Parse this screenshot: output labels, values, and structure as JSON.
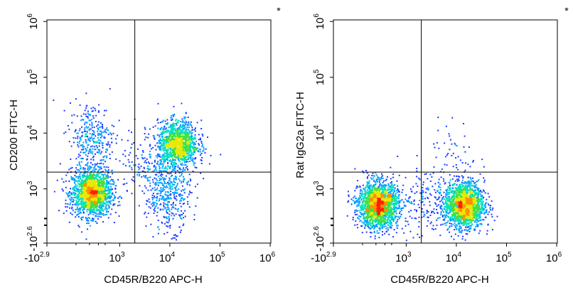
{
  "chart_data": [
    {
      "type": "scatter",
      "title": "",
      "corner_mark": "*",
      "xlabel": "CD45R/B220 APC-H",
      "ylabel": "CD200 FITC-H",
      "x_scale": "biexponential",
      "y_scale": "biexponential",
      "x_ticks": [
        {
          "base": "-10",
          "exp": "2.9"
        },
        {
          "base": "10",
          "exp": "3"
        },
        {
          "base": "10",
          "exp": "4"
        },
        {
          "base": "10",
          "exp": "5"
        },
        {
          "base": "10",
          "exp": "6"
        }
      ],
      "y_ticks": [
        {
          "base": "-10",
          "exp": "2.6"
        },
        {
          "base": "10",
          "exp": "3"
        },
        {
          "base": "10",
          "exp": "4"
        },
        {
          "base": "10",
          "exp": "5"
        },
        {
          "base": "10",
          "exp": "6"
        }
      ],
      "quadrant_gate": {
        "x": 2000,
        "y": 2000
      },
      "populations": [
        {
          "name": "",
          "x": 300,
          "y": 900,
          "count": 1700
        },
        {
          "name": "",
          "x": 300,
          "y": 8000,
          "count": 350
        },
        {
          "name": "",
          "x": 14000,
          "y": 6500,
          "count": 1300
        },
        {
          "name": "",
          "x": 9000,
          "y": 900,
          "count": 450
        },
        {
          "name": "",
          "x": 3000,
          "y": 3000,
          "count": 120
        }
      ],
      "grid": false
    },
    {
      "type": "scatter",
      "title": "",
      "corner_mark": "*",
      "xlabel": "CD45R/B220 APC-H",
      "ylabel": "Rat IgG2a FITC-H",
      "x_scale": "biexponential",
      "y_scale": "biexponential",
      "x_ticks": [
        {
          "base": "-10",
          "exp": "2.9"
        },
        {
          "base": "10",
          "exp": "3"
        },
        {
          "base": "10",
          "exp": "4"
        },
        {
          "base": "10",
          "exp": "5"
        },
        {
          "base": "10",
          "exp": "6"
        }
      ],
      "y_ticks": [
        {
          "base": "-10",
          "exp": "2.6"
        },
        {
          "base": "10",
          "exp": "3"
        },
        {
          "base": "10",
          "exp": "4"
        },
        {
          "base": "10",
          "exp": "5"
        },
        {
          "base": "10",
          "exp": "6"
        }
      ],
      "quadrant_gate": {
        "x": 2000,
        "y": 2000
      },
      "populations": [
        {
          "name": "",
          "x": 300,
          "y": 600,
          "count": 2000
        },
        {
          "name": "",
          "x": 14000,
          "y": 600,
          "count": 1800
        },
        {
          "name": "",
          "x": 2000,
          "y": 700,
          "count": 150
        },
        {
          "name": "",
          "x": 9000,
          "y": 4000,
          "count": 60
        }
      ],
      "grid": false
    }
  ]
}
